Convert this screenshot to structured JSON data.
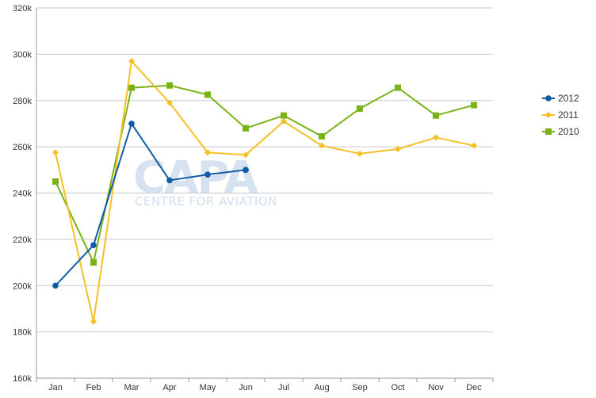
{
  "chart_data": {
    "type": "line",
    "categories": [
      "Jan",
      "Feb",
      "Mar",
      "Apr",
      "May",
      "Jun",
      "Jul",
      "Aug",
      "Sep",
      "Oct",
      "Nov",
      "Dec"
    ],
    "ylim": [
      160000,
      320000
    ],
    "yticks": [
      160000,
      180000,
      200000,
      220000,
      240000,
      260000,
      280000,
      300000,
      320000
    ],
    "ytick_labels": [
      "160k",
      "180k",
      "200k",
      "220k",
      "240k",
      "260k",
      "280k",
      "300k",
      "320k"
    ],
    "grid": "horizontal",
    "legend_position": "right",
    "series": [
      {
        "name": "2010",
        "color": "#7ab317",
        "marker": "square",
        "values": [
          245000,
          210000,
          285500,
          286500,
          282500,
          268000,
          273500,
          264500,
          276500,
          285500,
          273500,
          278000
        ]
      },
      {
        "name": "2011",
        "color": "#f5c027",
        "marker": "diamond",
        "values": [
          257500,
          184500,
          297000,
          279000,
          257500,
          256500,
          271000,
          260500,
          257000,
          259000,
          264000,
          260500
        ]
      },
      {
        "name": "2012",
        "color": "#0f5ba6",
        "marker": "circle",
        "values": [
          200000,
          217500,
          270000,
          245500,
          248000,
          250000,
          null,
          null,
          null,
          null,
          null,
          null
        ]
      }
    ],
    "legend_order": [
      "2012",
      "2011",
      "2010"
    ]
  },
  "watermark": {
    "logo_text": "CAPA",
    "tagline": "CENTRE FOR AVIATION"
  }
}
